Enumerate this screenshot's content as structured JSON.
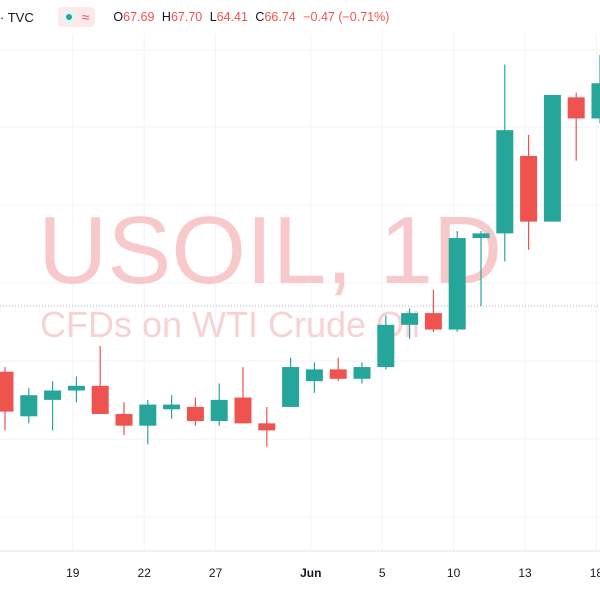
{
  "header": {
    "symbol_prefix": "· TVC",
    "ohlc": {
      "open_label": "O",
      "open": "67.69",
      "high_label": "H",
      "high": "67.70",
      "low_label": "L",
      "low": "64.41",
      "close_label": "C",
      "close": "66.74",
      "change": "−0.47 (−0.71%)"
    },
    "icons": {
      "status": "live-dot-icon",
      "wave": "wave-icon"
    }
  },
  "watermark": {
    "title": "USOIL, 1D",
    "subtitle": "CFDs on WTI Crude Oil"
  },
  "colors": {
    "up": "#26a69a",
    "down": "#ef5350",
    "grid": "#f0f3fa",
    "price_line": "#b2b5be"
  },
  "chart_data": {
    "type": "candlestick",
    "x_tick_labels": [
      {
        "label": "19",
        "index": 1
      },
      {
        "label": "22",
        "index": 4
      },
      {
        "label": "27",
        "index": 7
      },
      {
        "label": "Jun",
        "index": 11
      },
      {
        "label": "5",
        "index": 14
      },
      {
        "label": "10",
        "index": 17
      },
      {
        "label": "13",
        "index": 20
      },
      {
        "label": "18",
        "index": 23
      }
    ],
    "last_price_line": 69.9,
    "ylim": [
      59.5,
      81.5
    ],
    "grid": true,
    "candles": [
      {
        "o": 67.1,
        "h": 67.3,
        "l": 64.6,
        "c": 65.4
      },
      {
        "o": 65.2,
        "h": 66.4,
        "l": 64.9,
        "c": 66.1
      },
      {
        "o": 65.9,
        "h": 66.7,
        "l": 64.6,
        "c": 66.3
      },
      {
        "o": 66.3,
        "h": 66.9,
        "l": 65.8,
        "c": 66.5
      },
      {
        "o": 66.5,
        "h": 68.2,
        "l": 65.3,
        "c": 65.3
      },
      {
        "o": 65.3,
        "h": 65.8,
        "l": 64.4,
        "c": 64.8
      },
      {
        "o": 64.8,
        "h": 65.9,
        "l": 64.0,
        "c": 65.7
      },
      {
        "o": 65.5,
        "h": 66.1,
        "l": 65.1,
        "c": 65.7
      },
      {
        "o": 65.6,
        "h": 66.0,
        "l": 64.8,
        "c": 65.0
      },
      {
        "o": 65.0,
        "h": 66.6,
        "l": 64.8,
        "c": 65.9
      },
      {
        "o": 66.0,
        "h": 67.3,
        "l": 64.9,
        "c": 64.9
      },
      {
        "o": 64.9,
        "h": 65.6,
        "l": 63.9,
        "c": 64.6
      },
      {
        "o": 65.6,
        "h": 67.7,
        "l": 65.6,
        "c": 67.3
      },
      {
        "o": 66.7,
        "h": 67.5,
        "l": 66.2,
        "c": 67.2
      },
      {
        "o": 67.2,
        "h": 67.7,
        "l": 66.7,
        "c": 66.8
      },
      {
        "o": 66.8,
        "h": 67.5,
        "l": 66.6,
        "c": 67.3
      },
      {
        "o": 67.3,
        "h": 69.5,
        "l": 67.2,
        "c": 69.1
      },
      {
        "o": 69.1,
        "h": 69.8,
        "l": 68.5,
        "c": 69.6
      },
      {
        "o": 69.6,
        "h": 70.6,
        "l": 68.8,
        "c": 68.9
      },
      {
        "o": 68.9,
        "h": 73.1,
        "l": 68.8,
        "c": 72.8
      },
      {
        "o": 72.8,
        "h": 73.1,
        "l": 69.9,
        "c": 73.0
      },
      {
        "o": 73.0,
        "h": 80.2,
        "l": 71.8,
        "c": 77.4
      },
      {
        "o": 76.3,
        "h": 77.2,
        "l": 72.3,
        "c": 73.5
      },
      {
        "o": 73.5,
        "h": 78.9,
        "l": 73.5,
        "c": 78.9
      },
      {
        "o": 78.8,
        "h": 79.0,
        "l": 76.1,
        "c": 77.9
      },
      {
        "o": 77.9,
        "h": 80.6,
        "l": 77.7,
        "c": 79.4
      }
    ]
  }
}
